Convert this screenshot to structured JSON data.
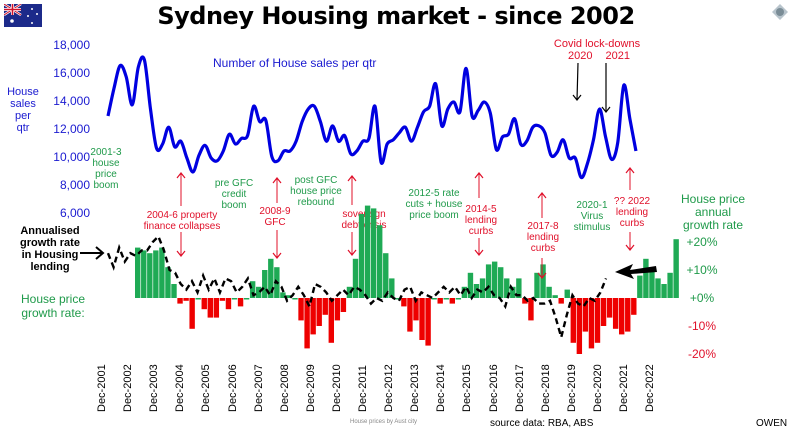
{
  "chart_data": {
    "type": "line+bar",
    "title": "Sydney Housing market - since 2002",
    "series": [
      {
        "name": "Number of House sales per qtr",
        "axis": "left",
        "type": "line",
        "color": "#0000e0",
        "x_start": "Dec-2001",
        "step": "quarter",
        "values": [
          13000,
          15000,
          16600,
          15800,
          13800,
          16500,
          17000,
          13500,
          10700,
          11000,
          12200,
          10800,
          11200,
          10000,
          9000,
          10200,
          10900,
          10000,
          9800,
          10500,
          11700,
          11000,
          11400,
          11600,
          13700,
          12600,
          12700,
          10100,
          9800,
          10500,
          10500,
          11200,
          12600,
          13500,
          13700,
          12600,
          11200,
          12300,
          11200,
          11600,
          10300,
          10500,
          11200,
          11400,
          13700,
          9700,
          11000,
          11300,
          11800,
          12200,
          11200,
          12200,
          13300,
          13700,
          15300,
          12300,
          13500,
          14000,
          13300,
          16400,
          13000,
          13400,
          14000,
          13200,
          10600,
          11500,
          11700,
          12800,
          11000,
          11200,
          12200,
          12300,
          11800,
          10200,
          10400,
          11300,
          10000,
          10000,
          8600,
          9600,
          11300,
          13500,
          11500,
          9900,
          11100,
          15200,
          12800,
          10500
        ]
      },
      {
        "name": "House price annual growth rate",
        "axis": "right",
        "type": "bar",
        "colors": {
          "positive": "#1faa55",
          "negative": "#ee0000"
        },
        "values": [
          18,
          17,
          16,
          17,
          18,
          11,
          5,
          -2,
          -1,
          -11,
          0,
          -4,
          -7,
          -7,
          -1,
          -4,
          0,
          -3,
          0,
          6,
          4,
          10,
          14,
          11,
          2,
          1,
          0,
          -8,
          -18,
          -13,
          -10,
          -6,
          -16,
          -8,
          -5,
          4,
          14,
          30,
          33,
          32,
          26,
          16,
          7,
          0,
          -3,
          -12,
          -8,
          -15,
          -17,
          0,
          -2,
          0,
          -2,
          0,
          4,
          9,
          5,
          7,
          12,
          13,
          11,
          7,
          4,
          7,
          -2,
          -8,
          9,
          12,
          4,
          1,
          -2,
          3,
          -16,
          -20,
          -12,
          -18,
          -16,
          -10,
          -7,
          -11,
          -13,
          -12,
          -6,
          8,
          14,
          10,
          7,
          5,
          9,
          21
        ]
      },
      {
        "name": "Annualised growth rate in Housing lending",
        "axis": "right",
        "type": "dashed-line",
        "color": "#000000",
        "values": [
          16,
          11,
          18,
          13,
          16,
          15,
          17,
          17,
          20,
          22,
          17,
          10,
          9,
          5,
          3,
          6,
          2,
          8,
          3,
          7,
          2,
          7,
          6,
          2,
          4,
          7,
          1,
          2,
          4,
          1,
          6,
          4,
          -1,
          1,
          4,
          1,
          -3,
          5,
          4,
          2,
          -1,
          1,
          3,
          1,
          4,
          3,
          1,
          -2,
          0,
          -1,
          2,
          0,
          -1,
          3,
          4,
          -1,
          2,
          1,
          0,
          2,
          4,
          2,
          4,
          1,
          4,
          0,
          3,
          2,
          4,
          1,
          0,
          -3,
          4,
          1,
          1,
          -1,
          0,
          -2,
          -2,
          -1,
          -7,
          -14,
          -6,
          1,
          -2,
          -3,
          0,
          -1,
          2,
          7
        ]
      }
    ],
    "y_left": {
      "label": "House sales per qtr",
      "ticks": [
        "18,000",
        "16,000",
        "14,000",
        "12,000",
        "10,000",
        "8,000",
        "6,000"
      ],
      "range": [
        6000,
        18000
      ]
    },
    "y_right": {
      "label": "House price annual growth rate",
      "ticks": [
        "+20%",
        "+10%",
        "+0%",
        "-10%",
        "-20%"
      ],
      "range": [
        -20,
        20
      ]
    },
    "x_ticks": [
      "Dec-2001",
      "Dec-2002",
      "Dec-2003",
      "Dec-2004",
      "Dec-2005",
      "Dec-2006",
      "Dec-2007",
      "Dec-2008",
      "Dec-2009",
      "Dec-2010",
      "Dec-2011",
      "Dec-2012",
      "Dec-2013",
      "Dec-2014",
      "Dec-2015",
      "Dec-2016",
      "Dec-2017",
      "Dec-2018",
      "Dec-2019",
      "Dec-2020",
      "Dec-2021",
      "Dec-2022"
    ],
    "annotations": {
      "sales_series_label": "Number of House sales per qtr",
      "left_axis_label": [
        "House",
        "sales",
        "per",
        "qtr"
      ],
      "right_axis_label": [
        "House price",
        "annual",
        "growth rate"
      ],
      "lending_label": [
        "Annualised",
        "growth rate",
        "in Housing",
        "lending"
      ],
      "price_growth_label": [
        "House price",
        "growth rate:"
      ],
      "boom_2001": [
        "2001-3",
        "house",
        "price",
        "boom"
      ],
      "collapse_2004": [
        "2004-6 property",
        "finance collapses"
      ],
      "pre_gfc": [
        "pre GFC",
        "credit",
        "boom"
      ],
      "gfc": [
        "2008-9",
        "GFC"
      ],
      "post_gfc": [
        "post GFC",
        "house price",
        "rebound"
      ],
      "sovereign": [
        "sovereign",
        "debt crisis"
      ],
      "rate_cuts": [
        "2012-5 rate",
        "cuts + house",
        "price boom"
      ],
      "curbs_2014": [
        "2014-5",
        "lending",
        "curbs"
      ],
      "curbs_2017": [
        "2017-8",
        "lending",
        "curbs"
      ],
      "virus": [
        "2020-1",
        "Virus",
        "stimulus"
      ],
      "curbs_2022": [
        "?? 2022",
        "lending",
        "curbs"
      ],
      "covid": [
        "Covid lock-downs",
        "2020",
        "2021"
      ]
    },
    "footer": {
      "caption": "House prices by Aust city",
      "source": "source data: RBA, ABS",
      "author": "OWEN"
    }
  }
}
